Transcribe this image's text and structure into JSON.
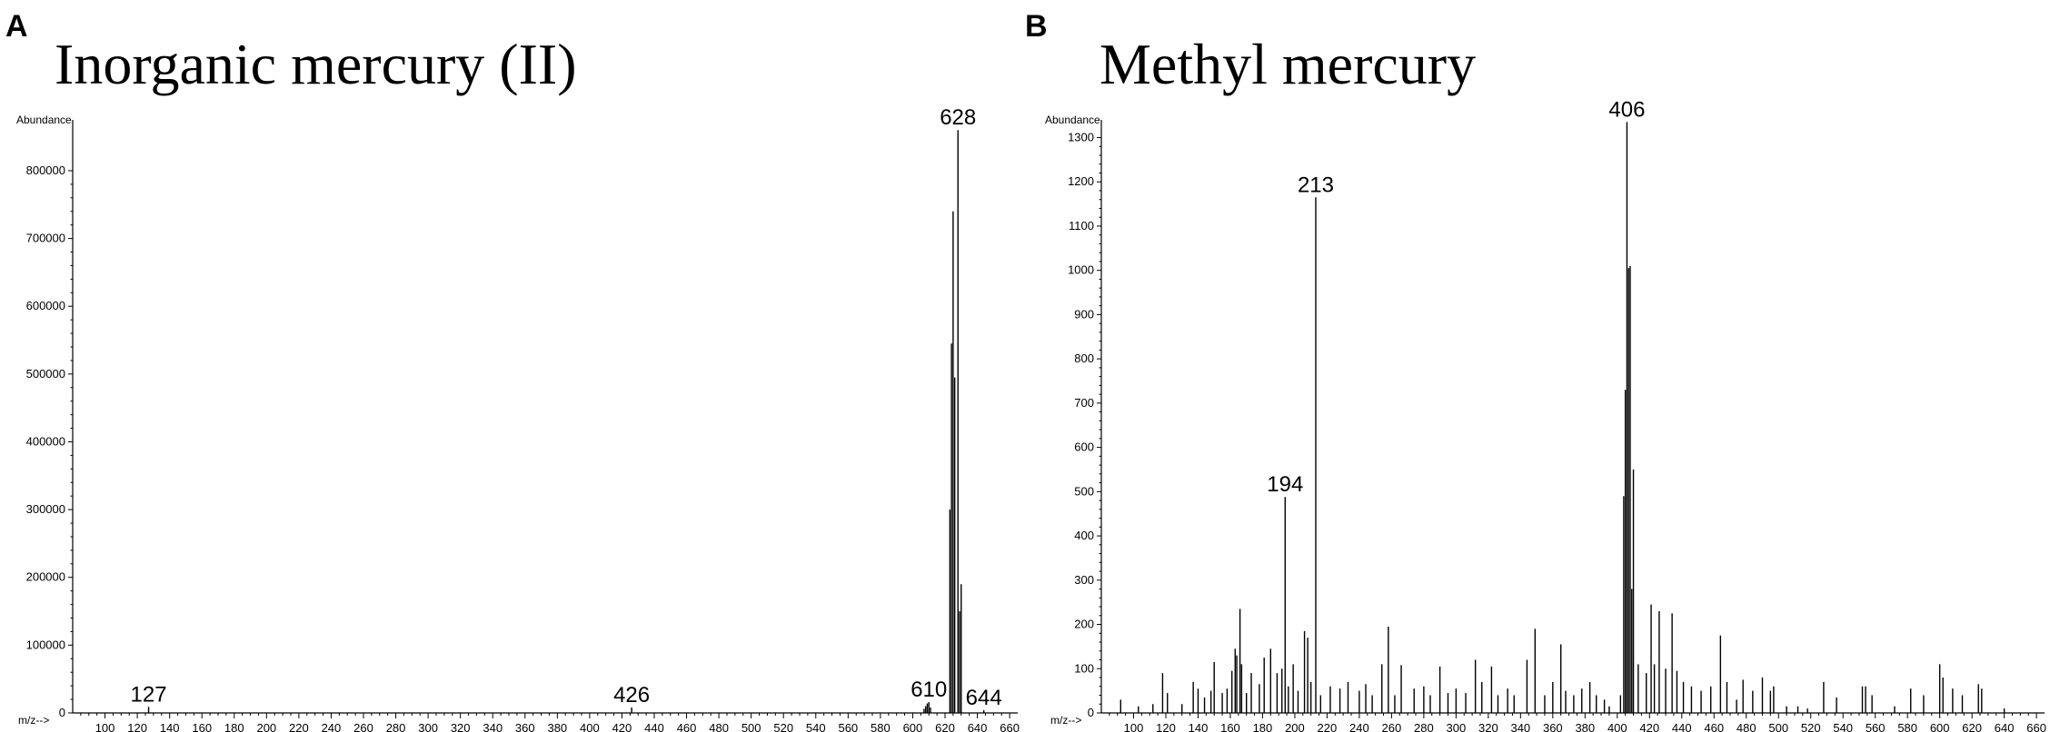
{
  "chart_data": [
    {
      "type": "bar",
      "panel_label": "A",
      "title": "Inorganic mercury (II)",
      "ylabel": "Abundance",
      "xlabel": "m/z-->",
      "xlim": [
        80,
        665
      ],
      "ylim": [
        0,
        875000
      ],
      "x_ticks": [
        100,
        120,
        140,
        160,
        180,
        200,
        220,
        240,
        260,
        280,
        300,
        320,
        340,
        360,
        380,
        400,
        420,
        440,
        460,
        480,
        500,
        520,
        540,
        560,
        580,
        600,
        620,
        640,
        660
      ],
      "y_ticks": [
        0,
        100000,
        200000,
        300000,
        400000,
        500000,
        600000,
        700000,
        800000
      ],
      "peaks": [
        {
          "mz": 127,
          "abundance": 9000
        },
        {
          "mz": 426,
          "abundance": 8000
        },
        {
          "mz": 607,
          "abundance": 6000
        },
        {
          "mz": 608,
          "abundance": 10000
        },
        {
          "mz": 609,
          "abundance": 14000
        },
        {
          "mz": 610,
          "abundance": 16000
        },
        {
          "mz": 611,
          "abundance": 8000
        },
        {
          "mz": 623,
          "abundance": 300000
        },
        {
          "mz": 624,
          "abundance": 545000
        },
        {
          "mz": 625,
          "abundance": 740000
        },
        {
          "mz": 626,
          "abundance": 495000
        },
        {
          "mz": 628,
          "abundance": 860000
        },
        {
          "mz": 629,
          "abundance": 150000
        },
        {
          "mz": 630,
          "abundance": 190000
        },
        {
          "mz": 644,
          "abundance": 4000
        }
      ],
      "peak_labels": [
        {
          "mz": 127,
          "abundance": 9000,
          "text": "127"
        },
        {
          "mz": 426,
          "abundance": 8000,
          "text": "426"
        },
        {
          "mz": 610,
          "abundance": 16000,
          "text": "610"
        },
        {
          "mz": 628,
          "abundance": 860000,
          "text": "628"
        },
        {
          "mz": 644,
          "abundance": 4000,
          "text": "644"
        }
      ]
    },
    {
      "type": "bar",
      "panel_label": "B",
      "title": "Methyl mercury",
      "ylabel": "Abundance",
      "xlabel": "m/z-->",
      "xlim": [
        80,
        665
      ],
      "ylim": [
        0,
        1340
      ],
      "x_ticks": [
        100,
        120,
        140,
        160,
        180,
        200,
        220,
        240,
        260,
        280,
        300,
        320,
        340,
        360,
        380,
        400,
        420,
        440,
        460,
        480,
        500,
        520,
        540,
        560,
        580,
        600,
        620,
        640,
        660
      ],
      "y_ticks": [
        0,
        100,
        200,
        300,
        400,
        500,
        600,
        700,
        800,
        900,
        1000,
        1100,
        1200,
        1300
      ],
      "peaks": [
        {
          "mz": 92,
          "abundance": 30
        },
        {
          "mz": 103,
          "abundance": 15
        },
        {
          "mz": 112,
          "abundance": 20
        },
        {
          "mz": 118,
          "abundance": 90
        },
        {
          "mz": 121,
          "abundance": 45
        },
        {
          "mz": 130,
          "abundance": 20
        },
        {
          "mz": 137,
          "abundance": 70
        },
        {
          "mz": 140,
          "abundance": 55
        },
        {
          "mz": 144,
          "abundance": 35
        },
        {
          "mz": 148,
          "abundance": 50
        },
        {
          "mz": 150,
          "abundance": 115
        },
        {
          "mz": 155,
          "abundance": 45
        },
        {
          "mz": 158,
          "abundance": 55
        },
        {
          "mz": 161,
          "abundance": 95
        },
        {
          "mz": 163,
          "abundance": 145
        },
        {
          "mz": 164,
          "abundance": 130
        },
        {
          "mz": 166,
          "abundance": 235
        },
        {
          "mz": 167,
          "abundance": 110
        },
        {
          "mz": 170,
          "abundance": 45
        },
        {
          "mz": 173,
          "abundance": 90
        },
        {
          "mz": 178,
          "abundance": 65
        },
        {
          "mz": 181,
          "abundance": 125
        },
        {
          "mz": 185,
          "abundance": 145
        },
        {
          "mz": 189,
          "abundance": 90
        },
        {
          "mz": 192,
          "abundance": 100
        },
        {
          "mz": 194,
          "abundance": 488
        },
        {
          "mz": 196,
          "abundance": 60
        },
        {
          "mz": 199,
          "abundance": 110
        },
        {
          "mz": 202,
          "abundance": 50
        },
        {
          "mz": 206,
          "abundance": 185
        },
        {
          "mz": 208,
          "abundance": 170
        },
        {
          "mz": 210,
          "abundance": 70
        },
        {
          "mz": 213,
          "abundance": 1165
        },
        {
          "mz": 216,
          "abundance": 40
        },
        {
          "mz": 222,
          "abundance": 60
        },
        {
          "mz": 228,
          "abundance": 55
        },
        {
          "mz": 233,
          "abundance": 70
        },
        {
          "mz": 240,
          "abundance": 50
        },
        {
          "mz": 244,
          "abundance": 65
        },
        {
          "mz": 248,
          "abundance": 40
        },
        {
          "mz": 254,
          "abundance": 110
        },
        {
          "mz": 258,
          "abundance": 195
        },
        {
          "mz": 262,
          "abundance": 40
        },
        {
          "mz": 266,
          "abundance": 108
        },
        {
          "mz": 274,
          "abundance": 55
        },
        {
          "mz": 280,
          "abundance": 60
        },
        {
          "mz": 284,
          "abundance": 40
        },
        {
          "mz": 290,
          "abundance": 105
        },
        {
          "mz": 295,
          "abundance": 45
        },
        {
          "mz": 300,
          "abundance": 55
        },
        {
          "mz": 306,
          "abundance": 45
        },
        {
          "mz": 312,
          "abundance": 120
        },
        {
          "mz": 316,
          "abundance": 70
        },
        {
          "mz": 322,
          "abundance": 105
        },
        {
          "mz": 326,
          "abundance": 40
        },
        {
          "mz": 332,
          "abundance": 55
        },
        {
          "mz": 336,
          "abundance": 40
        },
        {
          "mz": 344,
          "abundance": 120
        },
        {
          "mz": 349,
          "abundance": 190
        },
        {
          "mz": 355,
          "abundance": 40
        },
        {
          "mz": 360,
          "abundance": 70
        },
        {
          "mz": 365,
          "abundance": 155
        },
        {
          "mz": 368,
          "abundance": 50
        },
        {
          "mz": 373,
          "abundance": 40
        },
        {
          "mz": 378,
          "abundance": 55
        },
        {
          "mz": 383,
          "abundance": 70
        },
        {
          "mz": 387,
          "abundance": 40
        },
        {
          "mz": 392,
          "abundance": 30
        },
        {
          "mz": 395,
          "abundance": 15
        },
        {
          "mz": 402,
          "abundance": 40
        },
        {
          "mz": 404,
          "abundance": 490
        },
        {
          "mz": 405,
          "abundance": 730
        },
        {
          "mz": 406,
          "abundance": 1335
        },
        {
          "mz": 407,
          "abundance": 1005
        },
        {
          "mz": 408,
          "abundance": 1010
        },
        {
          "mz": 409,
          "abundance": 280
        },
        {
          "mz": 410,
          "abundance": 550
        },
        {
          "mz": 413,
          "abundance": 110
        },
        {
          "mz": 418,
          "abundance": 90
        },
        {
          "mz": 421,
          "abundance": 245
        },
        {
          "mz": 423,
          "abundance": 110
        },
        {
          "mz": 426,
          "abundance": 230
        },
        {
          "mz": 430,
          "abundance": 100
        },
        {
          "mz": 434,
          "abundance": 225
        },
        {
          "mz": 437,
          "abundance": 95
        },
        {
          "mz": 441,
          "abundance": 70
        },
        {
          "mz": 446,
          "abundance": 60
        },
        {
          "mz": 452,
          "abundance": 50
        },
        {
          "mz": 458,
          "abundance": 60
        },
        {
          "mz": 464,
          "abundance": 175
        },
        {
          "mz": 468,
          "abundance": 70
        },
        {
          "mz": 474,
          "abundance": 30
        },
        {
          "mz": 478,
          "abundance": 75
        },
        {
          "mz": 484,
          "abundance": 50
        },
        {
          "mz": 490,
          "abundance": 80
        },
        {
          "mz": 495,
          "abundance": 50
        },
        {
          "mz": 497,
          "abundance": 60
        },
        {
          "mz": 505,
          "abundance": 15
        },
        {
          "mz": 512,
          "abundance": 15
        },
        {
          "mz": 518,
          "abundance": 10
        },
        {
          "mz": 528,
          "abundance": 70
        },
        {
          "mz": 536,
          "abundance": 35
        },
        {
          "mz": 552,
          "abundance": 60
        },
        {
          "mz": 554,
          "abundance": 60
        },
        {
          "mz": 558,
          "abundance": 40
        },
        {
          "mz": 572,
          "abundance": 15
        },
        {
          "mz": 582,
          "abundance": 55
        },
        {
          "mz": 590,
          "abundance": 40
        },
        {
          "mz": 600,
          "abundance": 110
        },
        {
          "mz": 602,
          "abundance": 80
        },
        {
          "mz": 608,
          "abundance": 55
        },
        {
          "mz": 614,
          "abundance": 40
        },
        {
          "mz": 624,
          "abundance": 65
        },
        {
          "mz": 626,
          "abundance": 55
        },
        {
          "mz": 640,
          "abundance": 10
        }
      ],
      "peak_labels": [
        {
          "mz": 194,
          "abundance": 488,
          "text": "194"
        },
        {
          "mz": 213,
          "abundance": 1165,
          "text": "213"
        },
        {
          "mz": 406,
          "abundance": 1335,
          "text": "406"
        }
      ]
    }
  ]
}
